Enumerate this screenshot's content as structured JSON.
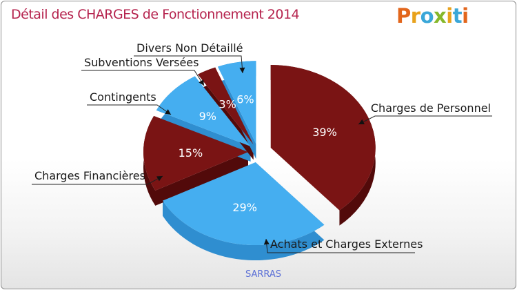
{
  "title": "Détail des CHARGES de Fonctionnement 2014",
  "logo": {
    "letters": [
      "P",
      "r",
      "o",
      "x",
      "i",
      "t",
      "i"
    ],
    "colors": [
      "#e2661c",
      "#e8a21c",
      "#3aa7d8",
      "#86b82b",
      "#e8a21c",
      "#3aa7d8",
      "#e2661c"
    ]
  },
  "footer_label": "SARRAS",
  "colors": {
    "red": "#7a1414",
    "red_dark": "#520a0a",
    "blue": "#45aef0",
    "blue_dark": "#2f8ed0"
  },
  "chart_data": {
    "type": "pie",
    "title": "Détail des CHARGES de Fonctionnement 2014",
    "slices": [
      {
        "label": "Charges de Personnel",
        "value": 39,
        "value_label": "39%",
        "color": "red"
      },
      {
        "label": "Achats et Charges Externes",
        "value": 29,
        "value_label": "29%",
        "color": "blue"
      },
      {
        "label": "Charges Financières",
        "value": 15,
        "value_label": "15%",
        "color": "red"
      },
      {
        "label": "Contingents",
        "value": 9,
        "value_label": "9%",
        "color": "blue"
      },
      {
        "label": "Subventions Versées",
        "value": 3,
        "value_label": "3%",
        "color": "red"
      },
      {
        "label": "Divers Non Détaillé",
        "value": 6,
        "value_label": "6%",
        "color": "blue"
      }
    ],
    "legend": "none"
  }
}
